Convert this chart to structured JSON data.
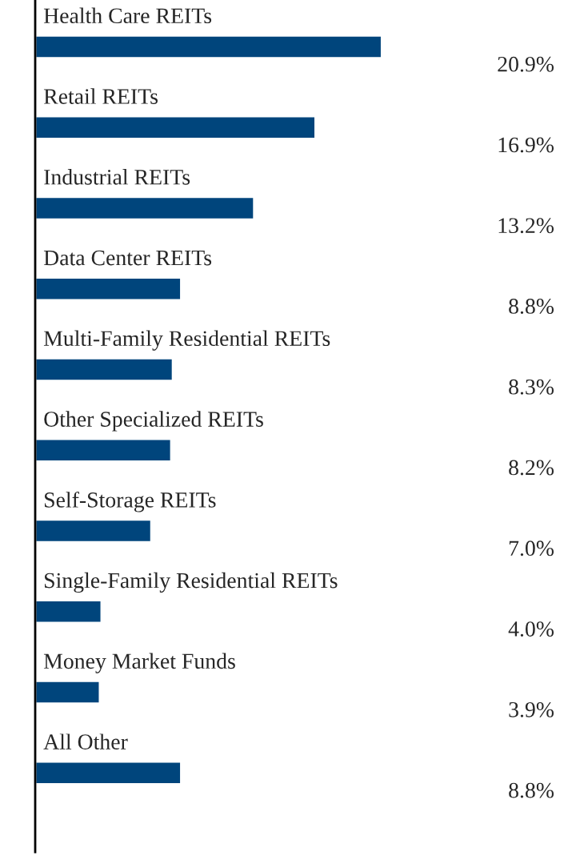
{
  "chart_data": {
    "type": "bar",
    "orientation": "horizontal",
    "categories": [
      "Health Care REITs",
      "Retail REITs",
      "Industrial REITs",
      "Data Center REITs",
      "Multi-Family Residential REITs",
      "Other Specialized REITs",
      "Self-Storage REITs",
      "Single-Family Residential REITs",
      "Money Market Funds",
      "All Other"
    ],
    "values": [
      20.9,
      16.9,
      13.2,
      8.8,
      8.3,
      8.2,
      7.0,
      4.0,
      3.9,
      8.8
    ],
    "value_labels": [
      "20.9%",
      "16.9%",
      "13.2%",
      "8.8%",
      "8.3%",
      "8.2%",
      "7.0%",
      "4.0%",
      "3.9%",
      "8.8%"
    ],
    "color": "#00457c"
  }
}
